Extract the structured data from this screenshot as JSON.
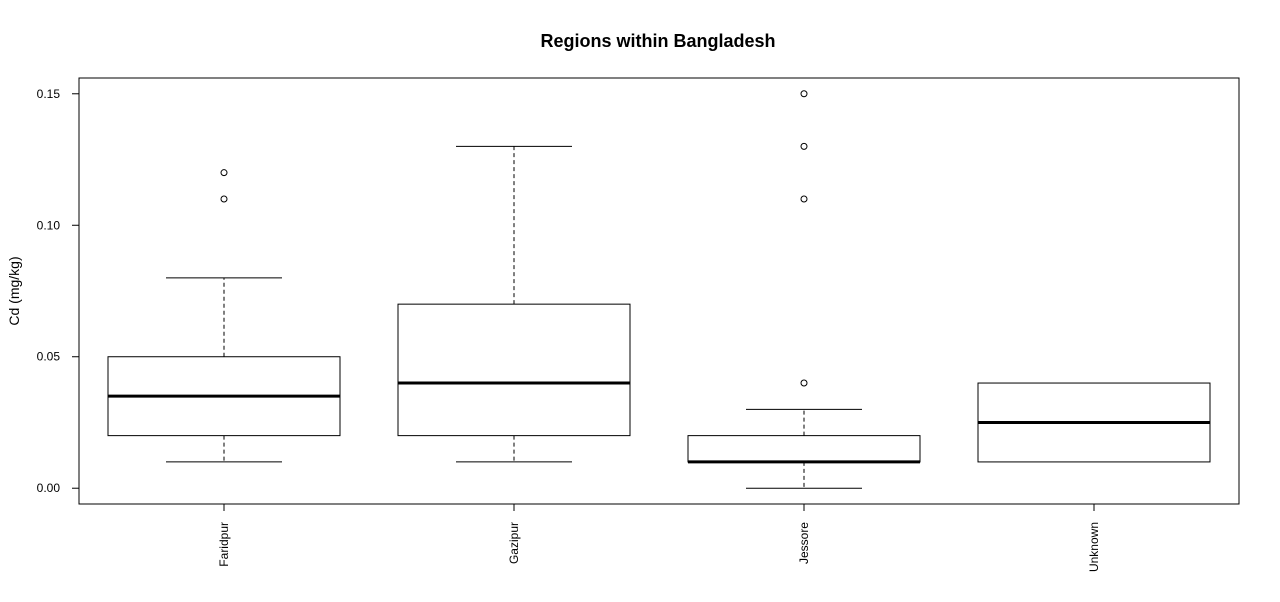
{
  "chart_data": {
    "type": "boxplot",
    "title": "Regions within Bangladesh",
    "xlabel": "",
    "ylabel": "Cd (mg/kg)",
    "ylim": [
      -0.006,
      0.156
    ],
    "yticks": [
      0.0,
      0.05,
      0.1,
      0.15
    ],
    "ytick_labels": [
      "0.00",
      "0.05",
      "0.10",
      "0.15"
    ],
    "grid": false,
    "legend": "none",
    "categories": [
      "Faridpur",
      "Gazipur",
      "Jessore",
      "Unknown"
    ],
    "boxes": [
      {
        "category": "Faridpur",
        "whisker_low": 0.01,
        "q1": 0.02,
        "median": 0.035,
        "q3": 0.05,
        "whisker_high": 0.08,
        "outliers": [
          0.11,
          0.12
        ]
      },
      {
        "category": "Gazipur",
        "whisker_low": 0.01,
        "q1": 0.02,
        "median": 0.04,
        "q3": 0.07,
        "whisker_high": 0.13,
        "outliers": []
      },
      {
        "category": "Jessore",
        "whisker_low": 0.0,
        "q1": 0.01,
        "median": 0.01,
        "q3": 0.02,
        "whisker_high": 0.03,
        "outliers": [
          0.04,
          0.11,
          0.13,
          0.15
        ]
      },
      {
        "category": "Unknown",
        "whisker_low": 0.01,
        "q1": 0.01,
        "median": 0.025,
        "q3": 0.04,
        "whisker_high": 0.04,
        "outliers": []
      }
    ],
    "colors": {
      "box_fill": "#ffffff",
      "stroke": "#000000"
    }
  }
}
